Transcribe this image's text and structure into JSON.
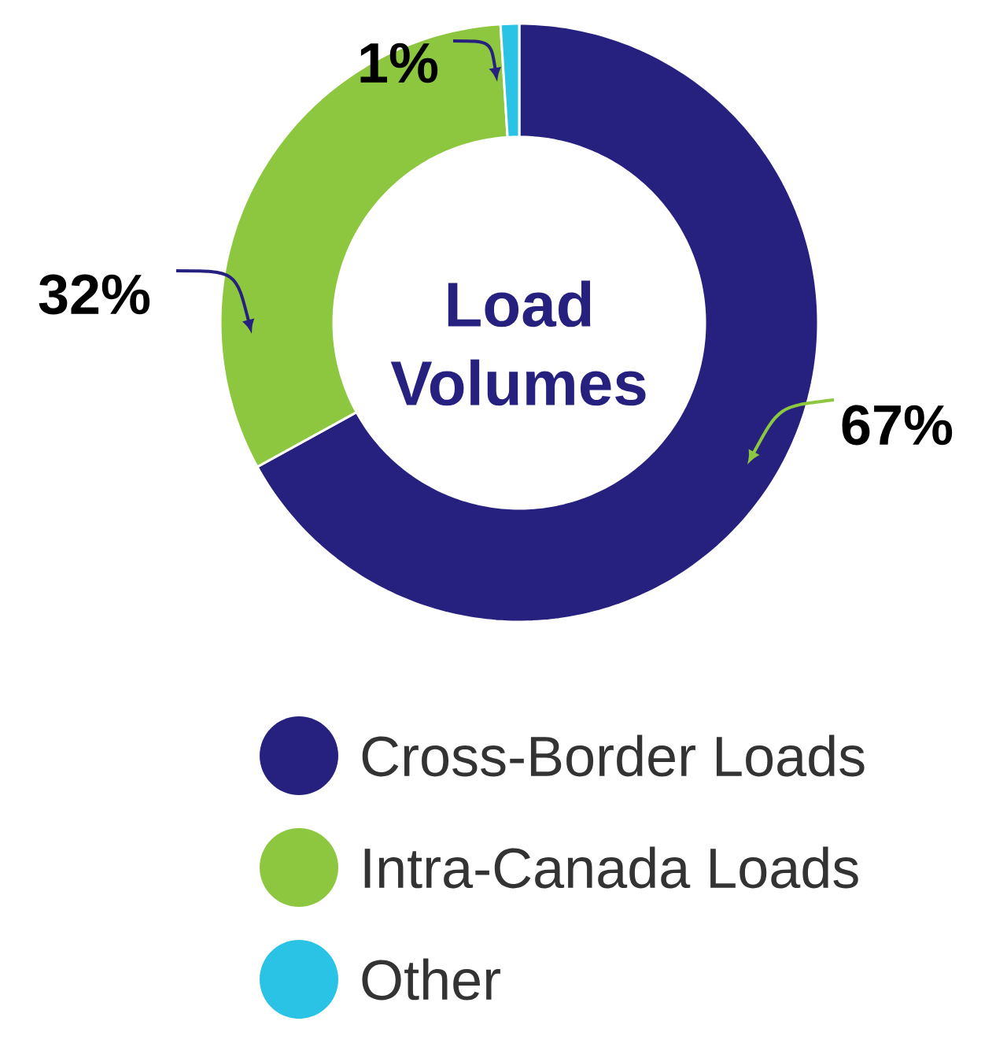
{
  "chart_data": {
    "type": "donut",
    "title": "Load Volumes",
    "categories": [
      "Cross-Border Loads",
      "Intra-Canada Loads",
      "Other"
    ],
    "values": [
      67,
      32,
      1
    ],
    "colors": [
      "#26217f",
      "#8dc63f",
      "#2ac3e6"
    ],
    "value_labels": [
      "67%",
      "32%",
      "1%"
    ],
    "legend": "bottom"
  }
}
